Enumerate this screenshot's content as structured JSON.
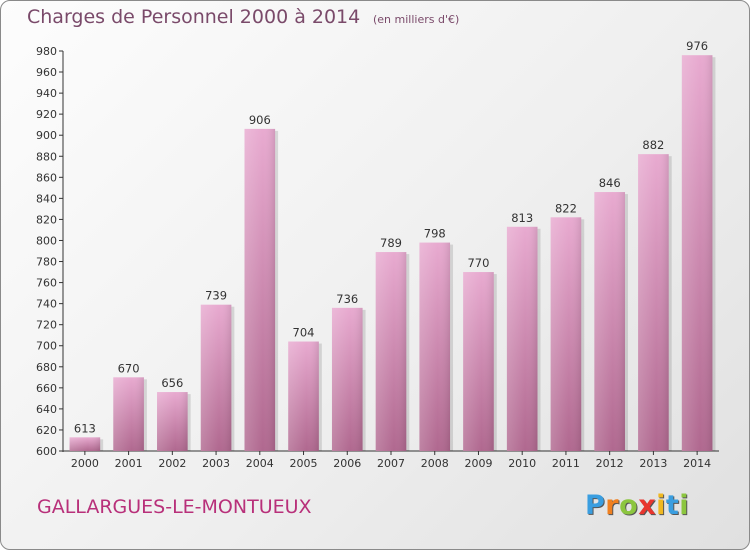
{
  "chart_data": {
    "type": "bar",
    "title": "Charges de Personnel 2000 à 2014",
    "subtitle": "(en milliers d'€)",
    "categories": [
      "2000",
      "2001",
      "2002",
      "2003",
      "2004",
      "2005",
      "2006",
      "2007",
      "2008",
      "2009",
      "2010",
      "2011",
      "2012",
      "2013",
      "2014"
    ],
    "values": [
      613,
      670,
      656,
      739,
      906,
      704,
      736,
      789,
      798,
      770,
      813,
      822,
      846,
      882,
      976
    ],
    "ylim": [
      600,
      980
    ],
    "ytick_step": 20,
    "grid": false,
    "bar_color": "#d98fbc"
  },
  "footer": {
    "place": "GALLARGUES-LE-MONTUEUX"
  },
  "logo": {
    "letters": [
      {
        "ch": "P",
        "color": "#3a9ee0"
      },
      {
        "ch": "r",
        "color": "#f08020"
      },
      {
        "ch": "o",
        "color": "#8cc63f"
      },
      {
        "ch": "x",
        "color": "#e8352e"
      },
      {
        "ch": "i",
        "color": "#f0b820"
      },
      {
        "ch": "t",
        "color": "#3a9ee0"
      },
      {
        "ch": "i",
        "color": "#8cc63f"
      }
    ]
  }
}
